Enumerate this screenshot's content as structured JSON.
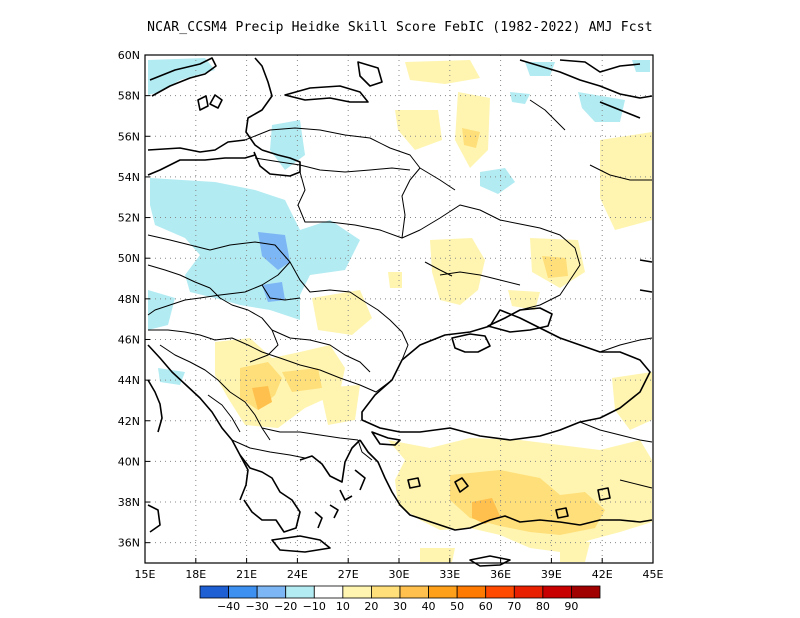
{
  "title": "NCAR_CCSM4 Precip Heidke Skill Score FebIC (1982-2022) AMJ Fcst",
  "map": {
    "lon_range": [
      15,
      45
    ],
    "lat_range": [
      35,
      60
    ],
    "x_ticks": [
      "15E",
      "18E",
      "21E",
      "24E",
      "27E",
      "30E",
      "33E",
      "36E",
      "39E",
      "42E",
      "45E"
    ],
    "y_ticks": [
      "36N",
      "38N",
      "40N",
      "42N",
      "44N",
      "46N",
      "48N",
      "50N",
      "52N",
      "54N",
      "56N",
      "58N",
      "60N"
    ],
    "grid": "dotted"
  },
  "colorbar": {
    "colors": [
      "#1f5fd4",
      "#3d8ff0",
      "#7db6f5",
      "#b2ebf2",
      "#ffffff",
      "#fff5b0",
      "#ffdf7a",
      "#ffc04d",
      "#ffa01a",
      "#ff7a00",
      "#ff4a00",
      "#e82000",
      "#c80000",
      "#a00000"
    ],
    "labels": [
      "-40",
      "-30",
      "-20",
      "-10",
      "10",
      "20",
      "30",
      "40",
      "50",
      "60",
      "70",
      "80",
      "90"
    ]
  },
  "colors": {
    "blue_light": "#b2ebf2",
    "blue_mid": "#7db6f5",
    "yellow_light": "#fff5b0",
    "yellow_mid": "#ffdf7a",
    "orange": "#ffc04d"
  }
}
